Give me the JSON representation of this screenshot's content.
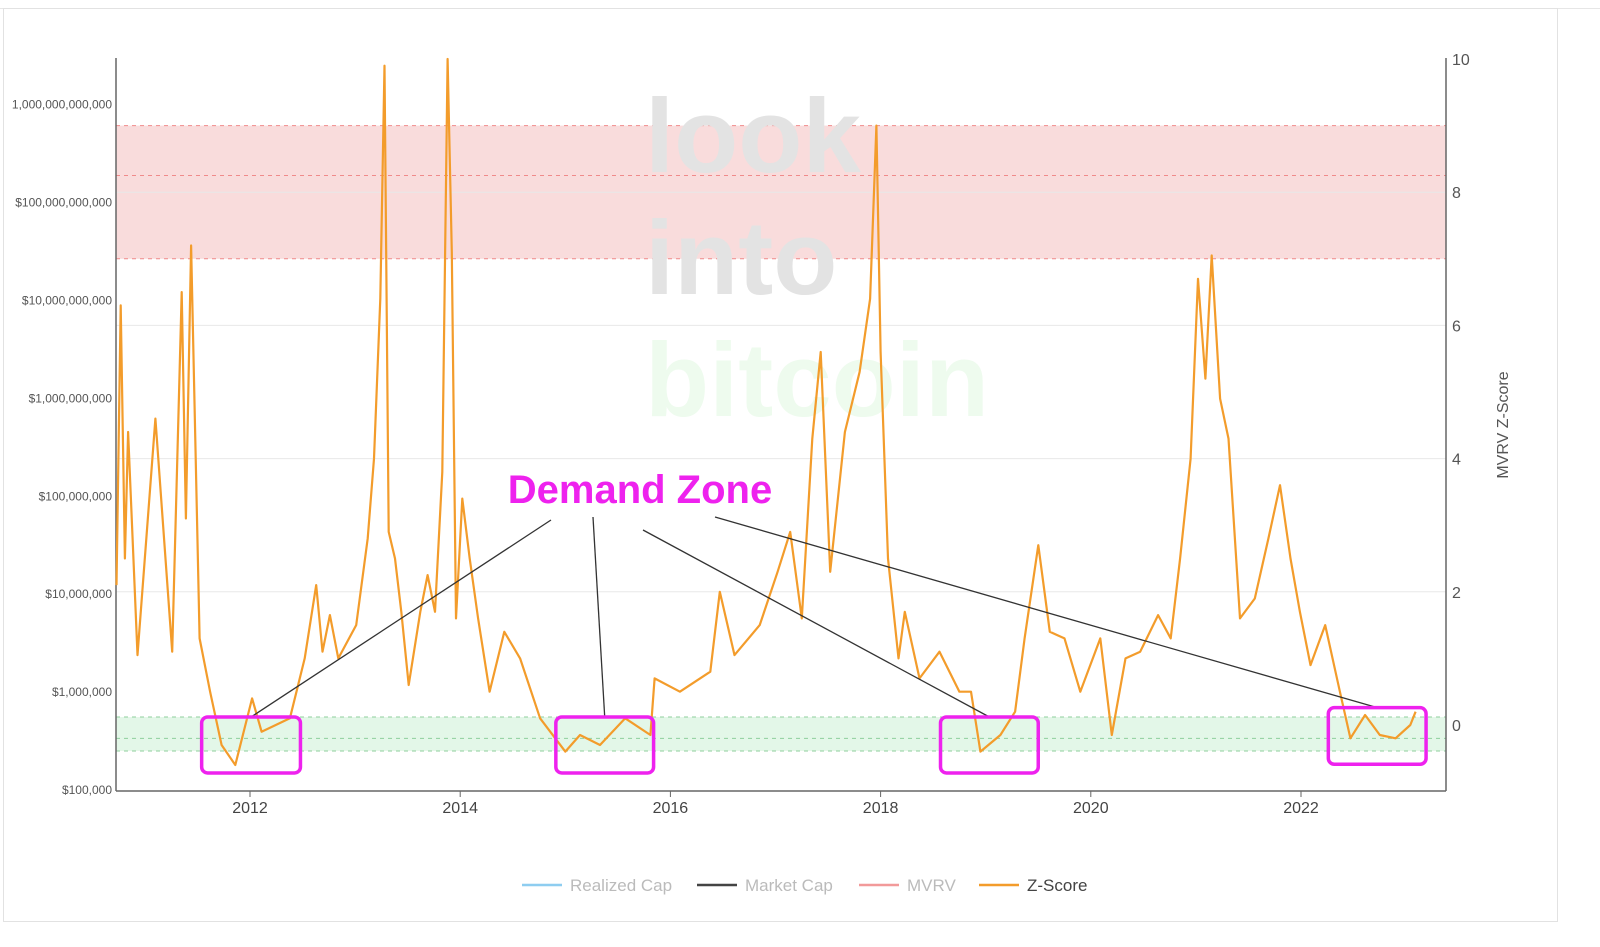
{
  "chart_data": {
    "type": "line",
    "title": "",
    "xlabel": "",
    "ylabel_right": "MVRV Z-Score",
    "x_range": [
      2010.73,
      2023.4
    ],
    "x_ticks": [
      "2012",
      "2014",
      "2016",
      "2018",
      "2020",
      "2022"
    ],
    "x_tick_values": [
      2012,
      2014,
      2016,
      2018,
      2020,
      2022
    ],
    "y_right_range": [
      -1,
      10
    ],
    "y_right_ticks": [
      "0",
      "2",
      "4",
      "6",
      "8",
      "10"
    ],
    "y_right_tick_values": [
      0,
      2,
      4,
      6,
      8,
      10
    ],
    "y_left_scale": "log",
    "y_left_range": [
      100000,
      3000000000000
    ],
    "y_left_ticks": [
      "$100,000",
      "$1,000,000",
      "$10,000,000",
      "$100,000,000",
      "$1,000,000,000",
      "$10,000,000,000",
      "$100,000,000,000",
      "1,000,000,000,000"
    ],
    "y_left_tick_values": [
      100000.0,
      1000000.0,
      10000000.0,
      100000000.0,
      1000000000.0,
      10000000000.0,
      100000000000.0,
      1000000000000.0
    ],
    "grid": true,
    "bands": [
      {
        "name": "overvalued",
        "z_low": 7.0,
        "z_high": 9.0,
        "z_mid": 8.25,
        "color": "#f9dcdc",
        "line_color": "#f08a8a"
      },
      {
        "name": "undervalued",
        "z_low": -0.39,
        "z_high": 0.12,
        "z_mid": -0.2,
        "color": "#e3f7e8",
        "line_color": "#8fcf9c"
      }
    ],
    "series": [
      {
        "name": "Realized Cap",
        "color": "#8ecdf0",
        "visible": false
      },
      {
        "name": "Market Cap",
        "color": "#444444",
        "visible": false
      },
      {
        "name": "MVRV",
        "color": "#f29a9a",
        "visible": false
      },
      {
        "name": "Z-Score",
        "color": "#f39c2b",
        "visible": true,
        "x": [
          2010.73,
          2010.77,
          2010.81,
          2010.84,
          2010.93,
          2011.1,
          2011.26,
          2011.35,
          2011.39,
          2011.44,
          2011.52,
          2011.62,
          2011.73,
          2011.86,
          2012.02,
          2012.11,
          2012.38,
          2012.52,
          2012.63,
          2012.69,
          2012.76,
          2012.84,
          2013.01,
          2013.12,
          2013.18,
          2013.24,
          2013.28,
          2013.32,
          2013.38,
          2013.44,
          2013.51,
          2013.62,
          2013.69,
          2013.76,
          2013.83,
          2013.88,
          2013.92,
          2013.96,
          2014.02,
          2014.09,
          2014.17,
          2014.28,
          2014.42,
          2014.57,
          2014.76,
          2015.0,
          2015.14,
          2015.33,
          2015.57,
          2015.81,
          2015.85,
          2016.09,
          2016.38,
          2016.47,
          2016.61,
          2016.85,
          2017.02,
          2017.14,
          2017.25,
          2017.35,
          2017.43,
          2017.52,
          2017.66,
          2017.8,
          2017.9,
          2017.96,
          2018.0,
          2018.07,
          2018.17,
          2018.23,
          2018.37,
          2018.56,
          2018.75,
          2018.86,
          2018.95,
          2019.14,
          2019.28,
          2019.37,
          2019.5,
          2019.61,
          2019.75,
          2019.9,
          2020.09,
          2020.2,
          2020.33,
          2020.47,
          2020.64,
          2020.76,
          2020.85,
          2020.95,
          2021.02,
          2021.09,
          2021.15,
          2021.23,
          2021.31,
          2021.42,
          2021.56,
          2021.69,
          2021.8,
          2021.9,
          2021.99,
          2022.09,
          2022.23,
          2022.37,
          2022.47,
          2022.61,
          2022.75,
          2022.9,
          2023.04,
          2023.09
        ],
        "values": [
          2.1,
          6.3,
          2.5,
          4.4,
          1.05,
          4.6,
          1.1,
          6.5,
          3.1,
          7.2,
          1.3,
          0.5,
          -0.3,
          -0.6,
          0.4,
          -0.1,
          0.1,
          1.0,
          2.1,
          1.1,
          1.65,
          1.0,
          1.5,
          2.8,
          4.0,
          6.4,
          9.9,
          2.9,
          2.5,
          1.7,
          0.6,
          1.7,
          2.25,
          1.7,
          3.8,
          10.0,
          7.1,
          1.6,
          3.4,
          2.5,
          1.6,
          0.5,
          1.4,
          1.0,
          0.1,
          -0.4,
          -0.15,
          -0.3,
          0.1,
          -0.15,
          0.7,
          0.5,
          0.8,
          2.0,
          1.05,
          1.5,
          2.3,
          2.9,
          1.6,
          4.3,
          5.6,
          2.3,
          4.4,
          5.3,
          6.4,
          9.0,
          5.6,
          2.5,
          1.0,
          1.7,
          0.7,
          1.1,
          0.5,
          0.5,
          -0.4,
          -0.15,
          0.2,
          1.3,
          2.7,
          1.4,
          1.3,
          0.5,
          1.3,
          -0.15,
          1.0,
          1.1,
          1.65,
          1.3,
          2.5,
          4.0,
          6.7,
          5.2,
          7.05,
          4.9,
          4.3,
          1.6,
          1.9,
          2.8,
          3.6,
          2.5,
          1.7,
          0.9,
          1.5,
          0.5,
          -0.2,
          0.15,
          -0.15,
          -0.2,
          0.0,
          0.2
        ]
      }
    ],
    "legend": [
      "Realized Cap",
      "Market Cap",
      "MVRV",
      "Z-Score"
    ],
    "legend_placement": "bottom-center",
    "annotation": {
      "label": "Demand Zone",
      "color": "#ee22ee",
      "boxes": [
        {
          "x0": 2011.54,
          "x1": 2012.48,
          "z_high": 0.12,
          "z_low": -0.72
        },
        {
          "x0": 2014.91,
          "x1": 2015.84,
          "z_high": 0.12,
          "z_low": -0.72
        },
        {
          "x0": 2018.57,
          "x1": 2019.5,
          "z_high": 0.12,
          "z_low": -0.72
        },
        {
          "x0": 2022.26,
          "x1": 2023.19,
          "z_high": 0.26,
          "z_low": -0.59
        }
      ]
    },
    "watermark": [
      "look",
      "into",
      "bitcoin"
    ]
  }
}
